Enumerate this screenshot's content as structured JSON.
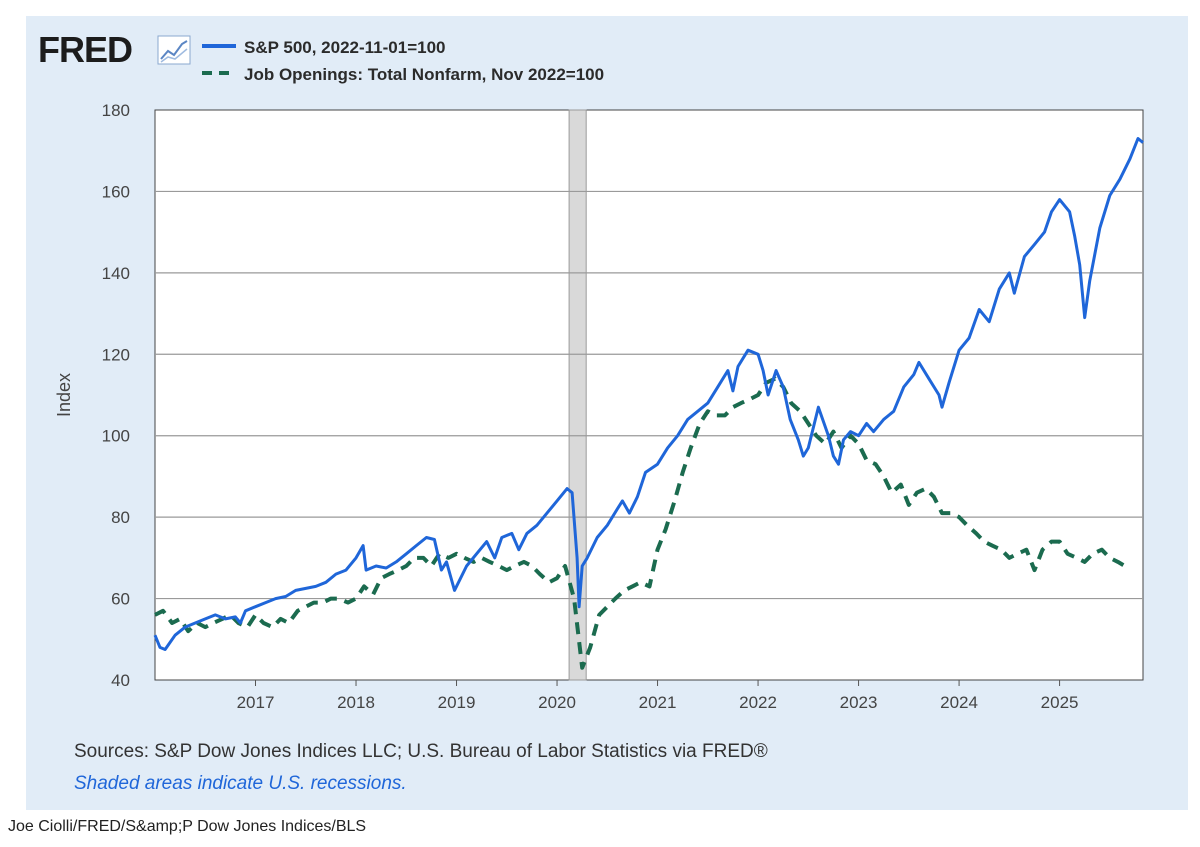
{
  "logo": {
    "text": "FRED"
  },
  "legend": [
    {
      "label": "S&P 500, 2022-11-01=100"
    },
    {
      "label": "Job Openings: Total Nonfarm, Nov 2022=100"
    }
  ],
  "footer": {
    "sources": "Sources: S&P Dow Jones Indices LLC; U.S. Bureau of Labor Statistics via FRED®",
    "note": "Shaded areas indicate U.S. recessions."
  },
  "caption": "Joe Ciolli/FRED/S&amp;P Dow Jones Indices/BLS",
  "chart_data": {
    "type": "line",
    "title": "",
    "xlabel": "",
    "ylabel": "Index",
    "xlim": [
      2016.0,
      2025.83
    ],
    "ylim": [
      40,
      180
    ],
    "yticks": [
      40,
      60,
      80,
      100,
      120,
      140,
      160,
      180
    ],
    "xticks": [
      2017,
      2018,
      2019,
      2020,
      2021,
      2022,
      2023,
      2024,
      2025
    ],
    "grid": "horizontal",
    "legend_position": "top-left",
    "recessions": [
      {
        "start": 2020.12,
        "end": 2020.29
      }
    ],
    "series": [
      {
        "name": "S&P 500, 2022-11-01=100",
        "color": "#1f66d9",
        "style": "solid",
        "points": [
          [
            2016.0,
            51
          ],
          [
            2016.05,
            48
          ],
          [
            2016.1,
            47.5
          ],
          [
            2016.2,
            51
          ],
          [
            2016.3,
            53
          ],
          [
            2016.4,
            54
          ],
          [
            2016.5,
            55
          ],
          [
            2016.6,
            56
          ],
          [
            2016.7,
            55
          ],
          [
            2016.8,
            55.5
          ],
          [
            2016.85,
            54
          ],
          [
            2016.9,
            57
          ],
          [
            2017.0,
            58
          ],
          [
            2017.1,
            59
          ],
          [
            2017.2,
            60
          ],
          [
            2017.3,
            60.5
          ],
          [
            2017.4,
            62
          ],
          [
            2017.5,
            62.5
          ],
          [
            2017.6,
            63
          ],
          [
            2017.7,
            64
          ],
          [
            2017.8,
            66
          ],
          [
            2017.9,
            67
          ],
          [
            2018.0,
            70
          ],
          [
            2018.07,
            73
          ],
          [
            2018.1,
            67
          ],
          [
            2018.2,
            68
          ],
          [
            2018.3,
            67.5
          ],
          [
            2018.4,
            69
          ],
          [
            2018.5,
            71
          ],
          [
            2018.6,
            73
          ],
          [
            2018.7,
            75
          ],
          [
            2018.78,
            74.5
          ],
          [
            2018.85,
            67
          ],
          [
            2018.9,
            69
          ],
          [
            2018.98,
            62
          ],
          [
            2019.0,
            63
          ],
          [
            2019.1,
            68
          ],
          [
            2019.2,
            71
          ],
          [
            2019.3,
            74
          ],
          [
            2019.38,
            70
          ],
          [
            2019.45,
            75
          ],
          [
            2019.55,
            76
          ],
          [
            2019.62,
            72
          ],
          [
            2019.7,
            76
          ],
          [
            2019.8,
            78
          ],
          [
            2019.9,
            81
          ],
          [
            2020.0,
            84
          ],
          [
            2020.1,
            87
          ],
          [
            2020.15,
            86
          ],
          [
            2020.2,
            70
          ],
          [
            2020.22,
            58
          ],
          [
            2020.25,
            68
          ],
          [
            2020.3,
            70
          ],
          [
            2020.4,
            75
          ],
          [
            2020.5,
            78
          ],
          [
            2020.6,
            82
          ],
          [
            2020.65,
            84
          ],
          [
            2020.72,
            81
          ],
          [
            2020.8,
            85
          ],
          [
            2020.88,
            91
          ],
          [
            2021.0,
            93
          ],
          [
            2021.1,
            97
          ],
          [
            2021.2,
            100
          ],
          [
            2021.3,
            104
          ],
          [
            2021.4,
            106
          ],
          [
            2021.5,
            108
          ],
          [
            2021.6,
            112
          ],
          [
            2021.7,
            116
          ],
          [
            2021.75,
            111
          ],
          [
            2021.8,
            117
          ],
          [
            2021.9,
            121
          ],
          [
            2022.0,
            120
          ],
          [
            2022.05,
            116
          ],
          [
            2022.1,
            110
          ],
          [
            2022.18,
            116
          ],
          [
            2022.25,
            112
          ],
          [
            2022.32,
            104
          ],
          [
            2022.4,
            99
          ],
          [
            2022.45,
            95
          ],
          [
            2022.5,
            97
          ],
          [
            2022.6,
            107
          ],
          [
            2022.7,
            100
          ],
          [
            2022.75,
            95
          ],
          [
            2022.8,
            93
          ],
          [
            2022.85,
            99
          ],
          [
            2022.92,
            101
          ],
          [
            2023.0,
            100
          ],
          [
            2023.08,
            103
          ],
          [
            2023.15,
            101
          ],
          [
            2023.25,
            104
          ],
          [
            2023.35,
            106
          ],
          [
            2023.45,
            112
          ],
          [
            2023.55,
            115
          ],
          [
            2023.6,
            118
          ],
          [
            2023.7,
            114
          ],
          [
            2023.8,
            110
          ],
          [
            2023.83,
            107
          ],
          [
            2023.9,
            113
          ],
          [
            2024.0,
            121
          ],
          [
            2024.1,
            124
          ],
          [
            2024.2,
            131
          ],
          [
            2024.3,
            128
          ],
          [
            2024.4,
            136
          ],
          [
            2024.5,
            140
          ],
          [
            2024.55,
            135
          ],
          [
            2024.65,
            144
          ],
          [
            2024.75,
            147
          ],
          [
            2024.85,
            150
          ],
          [
            2024.92,
            155
          ],
          [
            2025.0,
            158
          ],
          [
            2025.1,
            155
          ],
          [
            2025.15,
            149
          ],
          [
            2025.2,
            142
          ],
          [
            2025.25,
            129
          ],
          [
            2025.3,
            138
          ],
          [
            2025.4,
            151
          ],
          [
            2025.5,
            159
          ],
          [
            2025.6,
            163
          ],
          [
            2025.7,
            168
          ],
          [
            2025.78,
            173
          ],
          [
            2025.83,
            172
          ]
        ]
      },
      {
        "name": "Job Openings: Total Nonfarm, Nov 2022=100",
        "color": "#1b6b4f",
        "style": "dashed",
        "points": [
          [
            2016.0,
            56
          ],
          [
            2016.08,
            57
          ],
          [
            2016.17,
            54
          ],
          [
            2016.25,
            55
          ],
          [
            2016.33,
            52
          ],
          [
            2016.42,
            54
          ],
          [
            2016.5,
            53
          ],
          [
            2016.58,
            54
          ],
          [
            2016.67,
            55
          ],
          [
            2016.75,
            56
          ],
          [
            2016.83,
            54
          ],
          [
            2016.92,
            53
          ],
          [
            2017.0,
            56
          ],
          [
            2017.08,
            54
          ],
          [
            2017.17,
            53
          ],
          [
            2017.25,
            55
          ],
          [
            2017.33,
            54
          ],
          [
            2017.42,
            57
          ],
          [
            2017.5,
            58
          ],
          [
            2017.58,
            59
          ],
          [
            2017.67,
            59
          ],
          [
            2017.75,
            60
          ],
          [
            2017.83,
            60
          ],
          [
            2017.92,
            59
          ],
          [
            2018.0,
            60
          ],
          [
            2018.08,
            63
          ],
          [
            2018.17,
            61
          ],
          [
            2018.25,
            65
          ],
          [
            2018.33,
            66
          ],
          [
            2018.42,
            67
          ],
          [
            2018.5,
            68
          ],
          [
            2018.58,
            70
          ],
          [
            2018.67,
            70
          ],
          [
            2018.75,
            68
          ],
          [
            2018.83,
            71
          ],
          [
            2018.92,
            70
          ],
          [
            2019.0,
            71
          ],
          [
            2019.08,
            70
          ],
          [
            2019.17,
            69
          ],
          [
            2019.25,
            70
          ],
          [
            2019.33,
            69
          ],
          [
            2019.42,
            68
          ],
          [
            2019.5,
            67
          ],
          [
            2019.58,
            68
          ],
          [
            2019.67,
            69
          ],
          [
            2019.75,
            68
          ],
          [
            2019.83,
            66
          ],
          [
            2019.92,
            64
          ],
          [
            2020.0,
            65
          ],
          [
            2020.08,
            68
          ],
          [
            2020.17,
            60
          ],
          [
            2020.25,
            43
          ],
          [
            2020.33,
            48
          ],
          [
            2020.42,
            56
          ],
          [
            2020.5,
            58
          ],
          [
            2020.58,
            60
          ],
          [
            2020.67,
            62
          ],
          [
            2020.75,
            63
          ],
          [
            2020.83,
            64
          ],
          [
            2020.92,
            63
          ],
          [
            2021.0,
            72
          ],
          [
            2021.08,
            77
          ],
          [
            2021.17,
            84
          ],
          [
            2021.25,
            91
          ],
          [
            2021.33,
            97
          ],
          [
            2021.42,
            103
          ],
          [
            2021.5,
            106
          ],
          [
            2021.58,
            105
          ],
          [
            2021.67,
            105
          ],
          [
            2021.75,
            107
          ],
          [
            2021.83,
            108
          ],
          [
            2021.92,
            109
          ],
          [
            2022.0,
            110
          ],
          [
            2022.08,
            113
          ],
          [
            2022.17,
            114
          ],
          [
            2022.25,
            112
          ],
          [
            2022.33,
            108
          ],
          [
            2022.42,
            106
          ],
          [
            2022.5,
            103
          ],
          [
            2022.58,
            100
          ],
          [
            2022.67,
            98
          ],
          [
            2022.75,
            101
          ],
          [
            2022.83,
            97
          ],
          [
            2022.92,
            100
          ],
          [
            2023.0,
            98
          ],
          [
            2023.08,
            94
          ],
          [
            2023.17,
            93
          ],
          [
            2023.25,
            90
          ],
          [
            2023.33,
            86
          ],
          [
            2023.42,
            88
          ],
          [
            2023.5,
            83
          ],
          [
            2023.58,
            86
          ],
          [
            2023.67,
            87
          ],
          [
            2023.75,
            85
          ],
          [
            2023.83,
            81
          ],
          [
            2023.92,
            81
          ],
          [
            2024.0,
            80
          ],
          [
            2024.08,
            78
          ],
          [
            2024.17,
            76
          ],
          [
            2024.25,
            74
          ],
          [
            2024.33,
            73
          ],
          [
            2024.42,
            72
          ],
          [
            2024.5,
            70
          ],
          [
            2024.58,
            71
          ],
          [
            2024.67,
            72
          ],
          [
            2024.75,
            67
          ],
          [
            2024.83,
            72
          ],
          [
            2024.92,
            74
          ],
          [
            2025.0,
            74
          ],
          [
            2025.08,
            71
          ],
          [
            2025.17,
            70
          ],
          [
            2025.25,
            69
          ],
          [
            2025.33,
            71
          ],
          [
            2025.42,
            72
          ],
          [
            2025.5,
            70
          ],
          [
            2025.58,
            69
          ],
          [
            2025.65,
            68
          ]
        ]
      }
    ]
  }
}
